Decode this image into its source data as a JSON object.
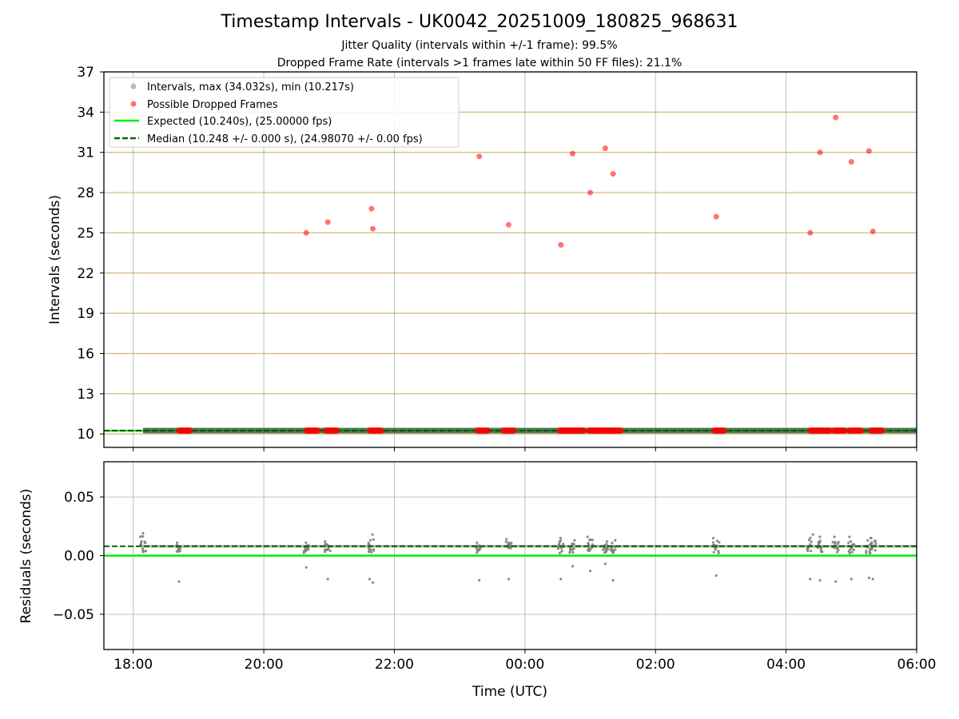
{
  "chart_data": [
    {
      "type": "scatter",
      "title": "Timestamp Intervals - UK0042_20251009_180825_968631",
      "subtitle_lines": [
        "Jitter Quality (intervals within +/-1 frame): 99.5%",
        "Dropped Frame Rate (intervals >1 frames late within 50 FF files): 21.1%"
      ],
      "xlabel": "",
      "ylabel": "Intervals (seconds)",
      "xlim": [
        -0.45,
        12.0
      ],
      "ylim": [
        9.0,
        37.0
      ],
      "yticks": [
        10,
        13,
        16,
        19,
        22,
        25,
        28,
        31,
        34,
        37
      ],
      "xticks": [
        0,
        2,
        4,
        6,
        8,
        10,
        12
      ],
      "grid": "both",
      "ygrid_color": "#d4b872",
      "legend_position": "top-left",
      "legend": [
        "Intervals, max (34.032s), min (10.217s)",
        "Possible Dropped Frames",
        "Expected (10.240s), (25.00000 fps)",
        "Median (10.248 +/- 0.000 s), (24.98070 +/- 0.00 fps)"
      ],
      "expected": 10.24,
      "median": 10.248,
      "normal_interval_range": [
        0.15,
        12.0
      ],
      "dropped_frames": [
        {
          "x": 2.65,
          "y": 25.0
        },
        {
          "x": 2.98,
          "y": 25.8
        },
        {
          "x": 3.65,
          "y": 26.8
        },
        {
          "x": 3.67,
          "y": 25.3
        },
        {
          "x": 5.3,
          "y": 30.7
        },
        {
          "x": 5.75,
          "y": 25.6
        },
        {
          "x": 6.55,
          "y": 24.1
        },
        {
          "x": 6.73,
          "y": 30.9
        },
        {
          "x": 7.0,
          "y": 28.0
        },
        {
          "x": 7.23,
          "y": 31.3
        },
        {
          "x": 7.35,
          "y": 29.4
        },
        {
          "x": 8.93,
          "y": 26.2
        },
        {
          "x": 10.37,
          "y": 25.0
        },
        {
          "x": 10.52,
          "y": 31.0
        },
        {
          "x": 10.76,
          "y": 33.6
        },
        {
          "x": 11.0,
          "y": 30.3
        },
        {
          "x": 11.27,
          "y": 31.1
        },
        {
          "x": 11.33,
          "y": 25.1
        }
      ],
      "dropped_frame_clusters": [
        [
          0.7,
          0.87
        ],
        [
          2.65,
          2.82
        ],
        [
          2.95,
          3.12
        ],
        [
          3.62,
          3.8
        ],
        [
          5.27,
          5.43
        ],
        [
          5.67,
          5.83
        ],
        [
          6.53,
          6.9
        ],
        [
          6.98,
          7.17
        ],
        [
          7.2,
          7.47
        ],
        [
          8.9,
          9.05
        ],
        [
          10.37,
          10.67
        ],
        [
          10.73,
          10.9
        ],
        [
          10.97,
          11.15
        ],
        [
          11.3,
          11.47
        ]
      ],
      "colors": {
        "intervals": "#808080",
        "dropped": "#ff0000",
        "expected": "#00ee00",
        "median": "#006400",
        "median_mid": "#2e6b2e"
      }
    },
    {
      "type": "scatter",
      "xlabel": "Time (UTC)",
      "ylabel": "Residuals (seconds)",
      "xlim": [
        -0.45,
        12.0
      ],
      "ylim": [
        -0.08,
        0.08
      ],
      "yticks": [
        0.05,
        0.0,
        -0.05
      ],
      "ytick_labels": [
        "0.05",
        "0.00",
        "−0.05"
      ],
      "xticks": [
        0,
        2,
        4,
        6,
        8,
        10,
        12
      ],
      "xtick_labels": [
        "18:00",
        "20:00",
        "22:00",
        "00:00",
        "02:00",
        "04:00",
        "06:00"
      ],
      "grid": "both",
      "expected_residual": 0.0,
      "median_residual": 0.008,
      "cluster_centers": [
        0.15,
        0.7,
        2.65,
        2.98,
        3.65,
        5.3,
        5.75,
        6.55,
        6.73,
        7.0,
        7.23,
        7.35,
        8.93,
        10.37,
        10.52,
        10.76,
        11.0,
        11.27,
        11.33
      ],
      "cluster_highs": [
        0.019,
        0.011,
        0.011,
        0.012,
        0.018,
        0.011,
        0.014,
        0.015,
        0.013,
        0.016,
        0.012,
        0.013,
        0.015,
        0.018,
        0.016,
        0.016,
        0.016,
        0.015,
        0.015
      ],
      "outliers": [
        {
          "x": 0.7,
          "y": -0.022
        },
        {
          "x": 2.65,
          "y": -0.01
        },
        {
          "x": 2.98,
          "y": -0.02
        },
        {
          "x": 3.62,
          "y": -0.02
        },
        {
          "x": 3.67,
          "y": -0.023
        },
        {
          "x": 5.3,
          "y": -0.021
        },
        {
          "x": 5.75,
          "y": -0.02
        },
        {
          "x": 6.55,
          "y": -0.02
        },
        {
          "x": 6.73,
          "y": -0.009
        },
        {
          "x": 7.0,
          "y": -0.013
        },
        {
          "x": 7.23,
          "y": -0.007
        },
        {
          "x": 7.35,
          "y": -0.021
        },
        {
          "x": 8.93,
          "y": -0.017
        },
        {
          "x": 10.37,
          "y": -0.02
        },
        {
          "x": 10.52,
          "y": -0.021
        },
        {
          "x": 10.76,
          "y": -0.022
        },
        {
          "x": 11.0,
          "y": -0.02
        },
        {
          "x": 11.27,
          "y": -0.019
        },
        {
          "x": 11.33,
          "y": -0.02
        }
      ]
    }
  ]
}
